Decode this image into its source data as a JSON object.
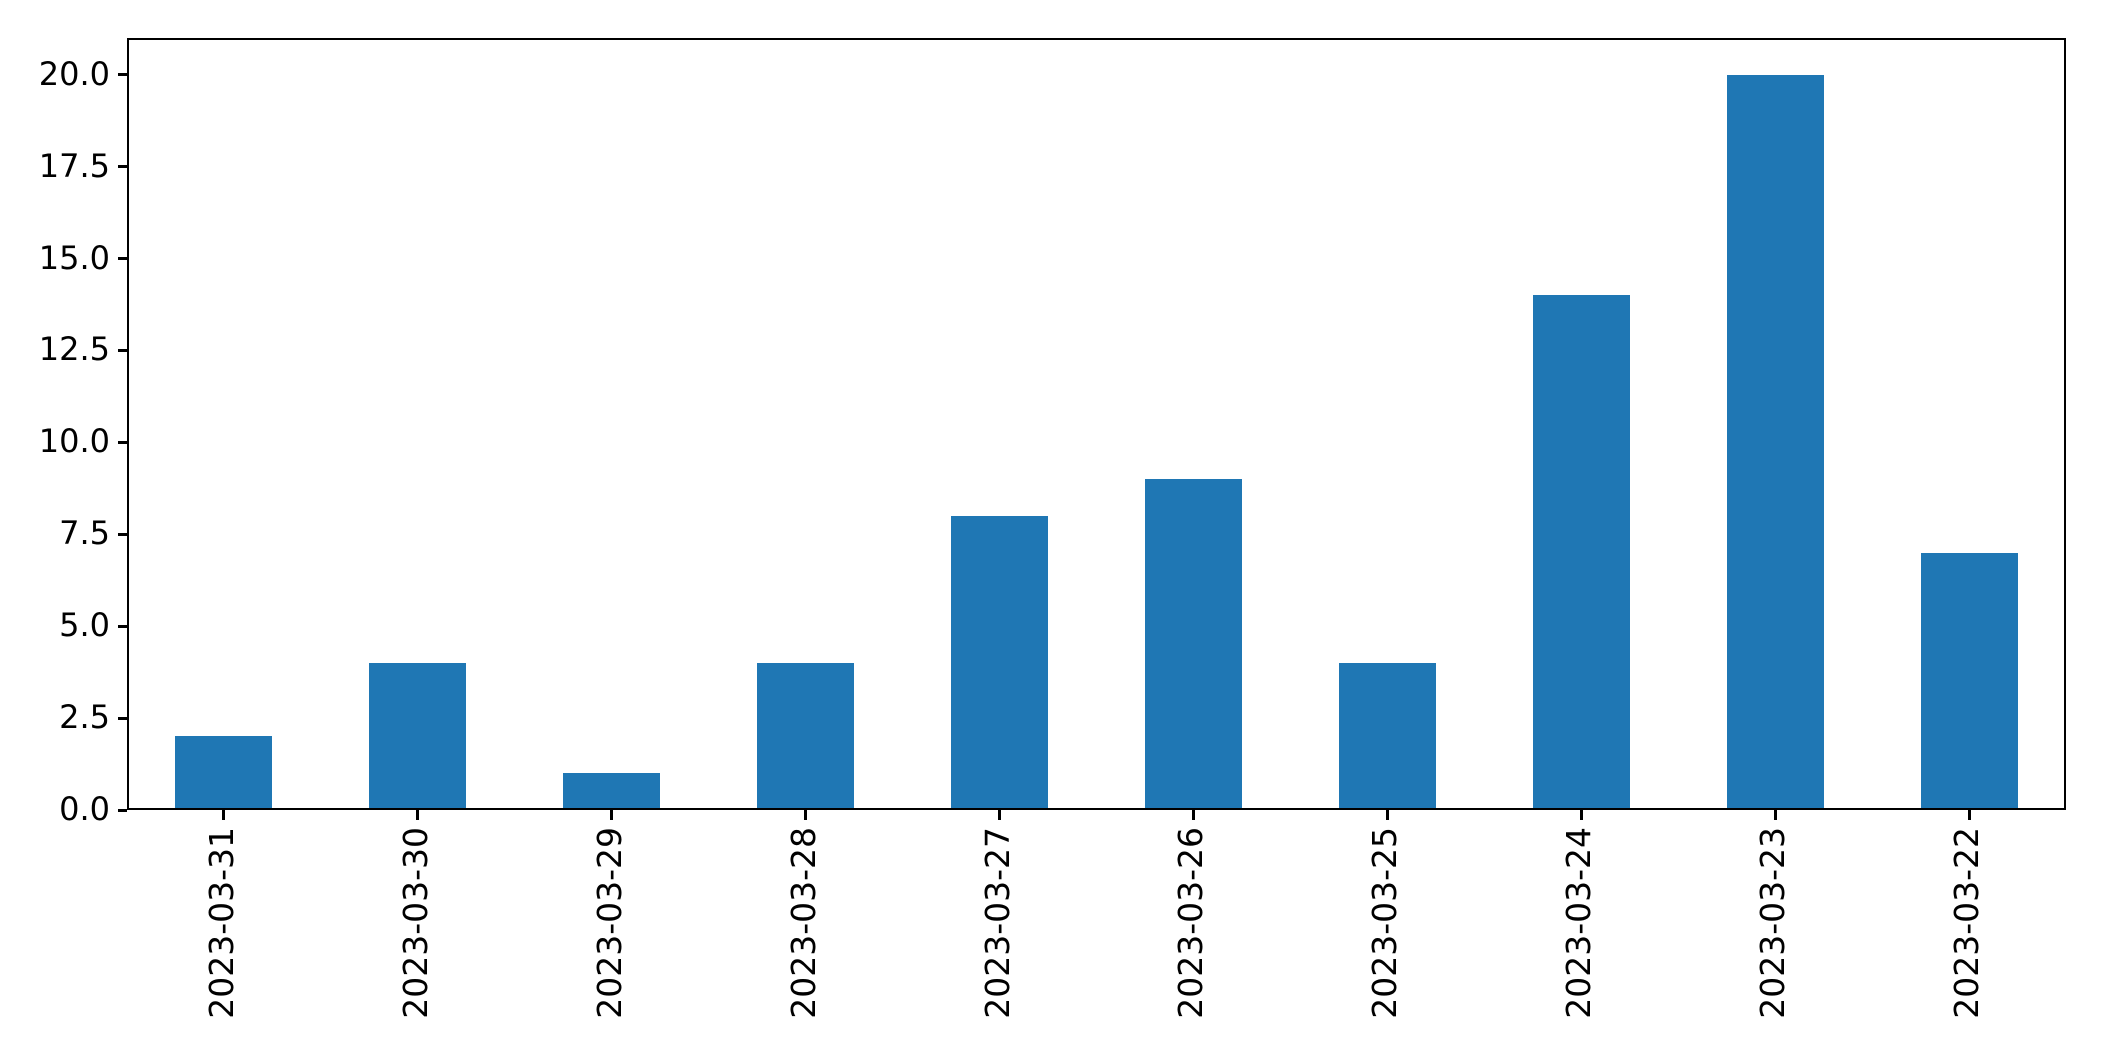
{
  "chart_data": {
    "type": "bar",
    "categories": [
      "2023-03-31",
      "2023-03-30",
      "2023-03-29",
      "2023-03-28",
      "2023-03-27",
      "2023-03-26",
      "2023-03-25",
      "2023-03-24",
      "2023-03-23",
      "2023-03-22"
    ],
    "values": [
      2,
      4,
      1,
      4,
      8,
      9,
      4,
      14,
      20,
      7
    ],
    "title": "",
    "xlabel": "",
    "ylabel": "",
    "ylim": [
      0,
      21
    ],
    "ytick_labels": [
      "0.0",
      "2.5",
      "5.0",
      "7.5",
      "10.0",
      "12.5",
      "15.0",
      "17.5",
      "20.0"
    ],
    "ytick_values": [
      0,
      2.5,
      5,
      7.5,
      10,
      12.5,
      15,
      17.5,
      20
    ],
    "bar_color": "#1f77b4",
    "bar_width_fraction": 0.5,
    "x_label_rotation_deg": 90,
    "grid": false,
    "legend": "none",
    "frame_color": "#000000",
    "text_color": "#000000"
  }
}
